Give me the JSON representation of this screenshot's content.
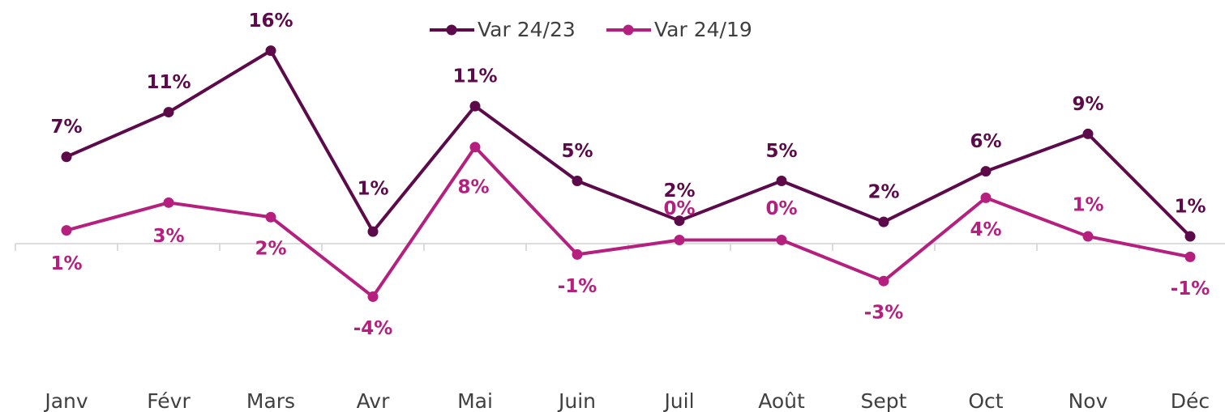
{
  "chart_data": {
    "type": "line",
    "categories": [
      "Janv",
      "Févr",
      "Mars",
      "Avr",
      "Mai",
      "Juin",
      "Juil",
      "Août",
      "Sept",
      "Oct",
      "Nov",
      "Déc"
    ],
    "series": [
      {
        "name": "Var 24/23",
        "color": "#5c0a4a",
        "values": [
          7.2,
          10.9,
          16.0,
          1.0,
          11.4,
          5.2,
          1.9,
          5.2,
          1.8,
          6.0,
          9.1,
          0.6
        ],
        "value_labels": [
          "7%",
          "11%",
          "16%",
          "1%",
          "11%",
          "5%",
          "2%",
          "5%",
          "2%",
          "6%",
          "9%",
          "1%"
        ]
      },
      {
        "name": "Var 24/19",
        "color": "#b5207f",
        "values": [
          1.1,
          3.4,
          2.2,
          -4.4,
          8.0,
          -0.9,
          0.3,
          0.3,
          -3.1,
          3.8,
          0.6,
          -1.1
        ],
        "value_labels": [
          "1%",
          "3%",
          "2%",
          "-4%",
          "8%",
          "-1%",
          "0%",
          "0%",
          "-3%",
          "4%",
          "1%",
          "-1%"
        ]
      }
    ],
    "ylim": [
      -10,
      20
    ],
    "legend": "top"
  }
}
